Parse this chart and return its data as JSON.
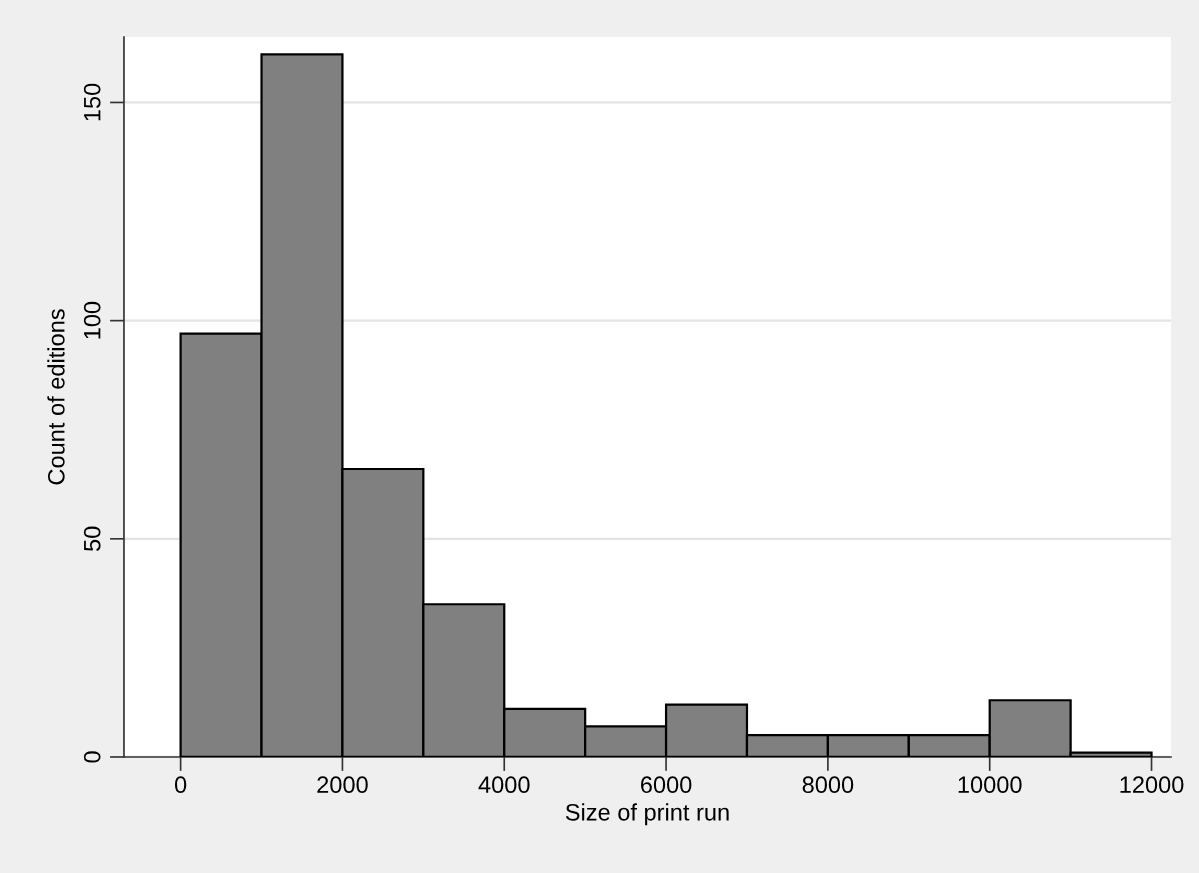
{
  "chart_data": {
    "type": "histogram",
    "xlabel": "Size of print run",
    "ylabel": "Count of editions",
    "bins": [
      0,
      1000,
      2000,
      3000,
      4000,
      5000,
      6000,
      7000,
      8000,
      9000,
      10000,
      11000,
      12000
    ],
    "values": [
      97,
      161,
      66,
      35,
      11,
      7,
      12,
      5,
      5,
      5,
      13,
      1
    ],
    "color": "#808080",
    "xlim": [
      -700,
      12240
    ],
    "xticks": [
      0,
      2000,
      4000,
      6000,
      8000,
      10000,
      12000
    ],
    "ylim": [
      0,
      165
    ],
    "yticks": [
      0,
      50,
      100,
      150
    ],
    "grid": "y"
  }
}
